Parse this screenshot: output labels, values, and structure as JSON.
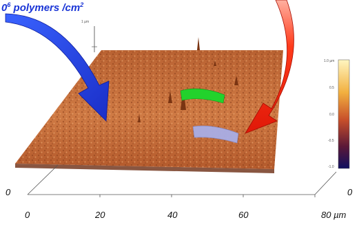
{
  "annotation": {
    "prefix": "0",
    "exponent": "6",
    "text": " polymers /cm",
    "unit_exponent": "2"
  },
  "axis": {
    "x_ticks": [
      "0",
      "20",
      "40",
      "60",
      "80 µm"
    ],
    "y_ticks": [
      "0",
      "0"
    ],
    "z_label": "1 µm"
  },
  "colorbar": {
    "ticks": [
      "1.0 µm",
      "0.5",
      "0.0",
      "-0.5",
      "-1.0"
    ]
  },
  "colors": {
    "title": "#1a35d6",
    "blue_arrow": "#1f3fe0",
    "red_arrow": "#ff2a10",
    "surface": "#c8723e",
    "green_marker": "#1fcf2a",
    "lavender_marker": "#a9aee6"
  },
  "icons": [
    "blue-arrow-icon",
    "red-arrow-icon"
  ]
}
